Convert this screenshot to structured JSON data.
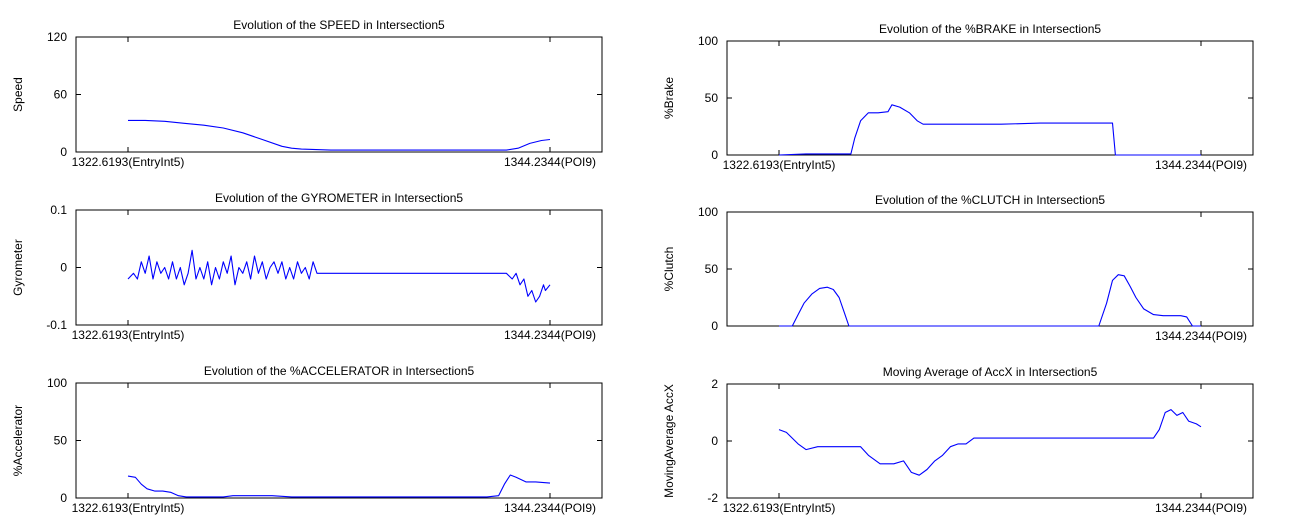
{
  "chart_data": [
    {
      "type": "line",
      "title": "Evolution of the SPEED in Intersection5",
      "ylabel": "Speed",
      "ylim": [
        0,
        120
      ],
      "yticks": [
        "0",
        "60",
        "120"
      ],
      "xlim": [
        1322.6193,
        1344.2344
      ],
      "xticks": [
        "1322.6193(EntryInt5)",
        "1344.2344(POI9)"
      ],
      "series": [
        {
          "color": "#0000ff",
          "x": [
            1322.6193,
            1323.5,
            1324.5,
            1325.5,
            1326.5,
            1327.5,
            1328.5,
            1329.5,
            1330.5,
            1331.0,
            1331.5,
            1333.0,
            1335.0,
            1337.0,
            1339.0,
            1341.0,
            1342.0,
            1342.6,
            1343.2,
            1343.8,
            1344.2344
          ],
          "y": [
            33,
            33,
            32,
            30,
            28,
            25,
            20,
            13,
            6,
            4,
            3,
            2,
            2,
            2,
            2,
            2,
            2,
            4,
            9,
            12,
            13
          ]
        }
      ]
    },
    {
      "type": "line",
      "title": "Evolution of the GYROMETER in Intersection5",
      "ylabel": "Gyrometer",
      "ylim": [
        -0.1,
        0.1
      ],
      "yticks": [
        "-0.1",
        "0",
        "0.1"
      ],
      "xlim": [
        1322.6193,
        1344.2344
      ],
      "xticks": [
        "1322.6193(EntryInt5)",
        "1344.2344(POI9)"
      ],
      "series": [
        {
          "color": "#0000ff",
          "x": [
            1322.6193,
            1322.9,
            1323.1,
            1323.3,
            1323.5,
            1323.7,
            1323.9,
            1324.1,
            1324.3,
            1324.5,
            1324.7,
            1324.9,
            1325.1,
            1325.3,
            1325.5,
            1325.7,
            1325.9,
            1326.1,
            1326.3,
            1326.5,
            1326.7,
            1326.9,
            1327.1,
            1327.3,
            1327.5,
            1327.7,
            1327.9,
            1328.1,
            1328.3,
            1328.5,
            1328.7,
            1328.9,
            1329.1,
            1329.3,
            1329.5,
            1329.7,
            1329.9,
            1330.1,
            1330.3,
            1330.5,
            1330.7,
            1330.9,
            1331.1,
            1331.3,
            1331.5,
            1331.7,
            1331.9,
            1332.1,
            1332.3,
            1332.6,
            1334.0,
            1336.0,
            1338.0,
            1340.0,
            1342.0,
            1342.3,
            1342.5,
            1342.7,
            1342.9,
            1343.1,
            1343.3,
            1343.5,
            1343.7,
            1343.9,
            1344.0,
            1344.2344
          ],
          "y": [
            -0.02,
            -0.01,
            -0.02,
            0.01,
            -0.01,
            0.02,
            -0.02,
            0.01,
            -0.01,
            0.0,
            -0.02,
            0.01,
            -0.02,
            0.0,
            -0.03,
            -0.01,
            0.03,
            -0.02,
            0.0,
            -0.02,
            0.01,
            -0.03,
            0.0,
            -0.02,
            0.01,
            -0.01,
            0.02,
            -0.03,
            0.0,
            -0.01,
            0.01,
            -0.02,
            0.02,
            -0.01,
            0.01,
            -0.02,
            0.0,
            0.01,
            -0.01,
            0.01,
            -0.02,
            0.0,
            -0.02,
            0.01,
            -0.01,
            0.0,
            -0.02,
            0.01,
            -0.01,
            -0.01,
            -0.01,
            -0.01,
            -0.01,
            -0.01,
            -0.01,
            -0.02,
            -0.01,
            -0.03,
            -0.02,
            -0.05,
            -0.04,
            -0.06,
            -0.05,
            -0.03,
            -0.04,
            -0.03
          ]
        }
      ]
    },
    {
      "type": "line",
      "title": "Evolution of the %ACCELERATOR in Intersection5",
      "ylabel": "%Accelerator",
      "ylim": [
        0,
        100
      ],
      "yticks": [
        "0",
        "50",
        "100"
      ],
      "xlim": [
        1322.6193,
        1344.2344
      ],
      "xticks": [
        "1322.6193(EntryInt5)",
        "1344.2344(POI9)"
      ],
      "series": [
        {
          "color": "#0000ff",
          "x": [
            1322.6193,
            1323.0,
            1323.3,
            1323.6,
            1324.0,
            1324.4,
            1324.8,
            1325.2,
            1325.6,
            1326.0,
            1326.5,
            1327.0,
            1327.5,
            1328.0,
            1329.0,
            1330.0,
            1331.0,
            1332.0,
            1333.0,
            1334.0,
            1335.0,
            1336.0,
            1337.0,
            1338.0,
            1339.0,
            1340.0,
            1341.0,
            1341.6,
            1341.9,
            1342.2,
            1342.5,
            1343.0,
            1343.5,
            1344.2344
          ],
          "y": [
            19,
            18,
            12,
            8,
            6,
            6,
            5,
            2,
            1,
            1,
            1,
            1,
            1,
            2,
            2,
            2,
            1,
            1,
            1,
            1,
            1,
            1,
            1,
            1,
            1,
            1,
            1,
            2,
            12,
            20,
            18,
            14,
            14,
            13
          ]
        }
      ]
    },
    {
      "type": "line",
      "title": "Evolution of the %BRAKE in Intersection5",
      "ylabel": "%Brake",
      "ylim": [
        0,
        100
      ],
      "yticks": [
        "0",
        "50",
        "100"
      ],
      "xlim": [
        1322.6193,
        1344.2344
      ],
      "xticks": [
        "1322.6193(EntryInt5)",
        "1344.2344(POI9)"
      ],
      "series": [
        {
          "color": "#0000ff",
          "x": [
            1322.6193,
            1324.0,
            1326.3,
            1326.5,
            1326.8,
            1327.2,
            1327.7,
            1328.2,
            1328.4,
            1328.8,
            1329.3,
            1329.7,
            1330.0,
            1330.5,
            1331.0,
            1332.0,
            1334.0,
            1336.0,
            1338.0,
            1339.5,
            1339.7,
            1339.85,
            1344.2344
          ],
          "y": [
            0,
            1,
            1,
            15,
            30,
            37,
            37,
            38,
            44,
            42,
            37,
            30,
            27,
            27,
            27,
            27,
            27,
            28,
            28,
            28,
            28,
            0,
            0
          ]
        }
      ]
    },
    {
      "type": "line",
      "title": "Evolution of the %CLUTCH in Intersection5",
      "ylabel": "%Clutch",
      "ylim": [
        0,
        100
      ],
      "yticks": [
        "0",
        "50",
        "100"
      ],
      "xlim": [
        1322.6193,
        1344.2344
      ],
      "xticks": [
        "1344.2344(POI9)"
      ],
      "series": [
        {
          "color": "#0000ff",
          "x": [
            1322.6193,
            1323.3,
            1323.6,
            1323.9,
            1324.3,
            1324.7,
            1325.1,
            1325.4,
            1325.7,
            1326.0,
            1326.2,
            1334.0,
            1339.0,
            1339.4,
            1339.7,
            1340.0,
            1340.3,
            1340.6,
            1340.9,
            1341.3,
            1341.8,
            1342.3,
            1342.8,
            1343.2,
            1343.5,
            1343.8,
            1344.2344
          ],
          "y": [
            0,
            0,
            10,
            20,
            28,
            33,
            34,
            32,
            25,
            10,
            0,
            0,
            0,
            20,
            40,
            45,
            44,
            35,
            25,
            15,
            10,
            9,
            9,
            9,
            8,
            0,
            0
          ]
        }
      ]
    },
    {
      "type": "line",
      "title": "Moving Average of AccX in Intersection5",
      "ylabel": "MovingAverage AccX",
      "ylim": [
        -2,
        2
      ],
      "yticks": [
        "-2",
        "0",
        "2"
      ],
      "xlim": [
        1322.6193,
        1344.2344
      ],
      "xticks": [
        "1322.6193(EntryInt5)",
        "1344.2344(POI9)"
      ],
      "series": [
        {
          "color": "#0000ff",
          "x": [
            1322.6193,
            1323.0,
            1323.6,
            1324.0,
            1324.6,
            1325.2,
            1326.0,
            1326.8,
            1327.2,
            1327.8,
            1328.5,
            1329.0,
            1329.4,
            1329.8,
            1330.2,
            1330.6,
            1331.0,
            1331.4,
            1331.8,
            1332.2,
            1332.6,
            1333.0,
            1334.0,
            1336.0,
            1338.0,
            1340.0,
            1341.0,
            1341.5,
            1341.8,
            1342.1,
            1342.4,
            1342.7,
            1343.0,
            1343.3,
            1343.6,
            1344.0,
            1344.2344
          ],
          "y": [
            0.4,
            0.3,
            -0.1,
            -0.3,
            -0.2,
            -0.2,
            -0.2,
            -0.2,
            -0.5,
            -0.8,
            -0.8,
            -0.7,
            -1.1,
            -1.2,
            -1.0,
            -0.7,
            -0.5,
            -0.2,
            -0.1,
            -0.1,
            0.1,
            0.1,
            0.1,
            0.1,
            0.1,
            0.1,
            0.1,
            0.1,
            0.1,
            0.4,
            1.0,
            1.1,
            0.9,
            1.0,
            0.7,
            0.6,
            0.5
          ]
        }
      ]
    }
  ]
}
